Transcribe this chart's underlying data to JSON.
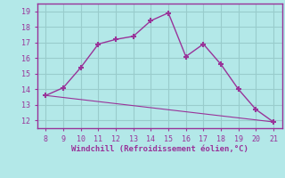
{
  "xlabel": "Windchill (Refroidissement éolien,°C)",
  "line1_x": [
    8,
    9,
    10,
    11,
    12,
    13,
    14,
    15,
    16,
    17,
    18,
    19,
    20,
    21
  ],
  "line1_y": [
    13.6,
    14.1,
    15.4,
    16.9,
    17.2,
    17.4,
    18.4,
    18.9,
    16.1,
    16.9,
    15.6,
    14.0,
    12.7,
    11.9
  ],
  "line2_x": [
    8,
    21
  ],
  "line2_y": [
    13.6,
    11.9
  ],
  "line_color": "#993399",
  "bg_color": "#b3e8e8",
  "grid_color": "#99cccc",
  "ylim": [
    11.5,
    19.5
  ],
  "xlim": [
    7.5,
    21.5
  ],
  "yticks": [
    12,
    13,
    14,
    15,
    16,
    17,
    18,
    19
  ],
  "xticks": [
    8,
    9,
    10,
    11,
    12,
    13,
    14,
    15,
    16,
    17,
    18,
    19,
    20,
    21
  ],
  "marker": "+"
}
